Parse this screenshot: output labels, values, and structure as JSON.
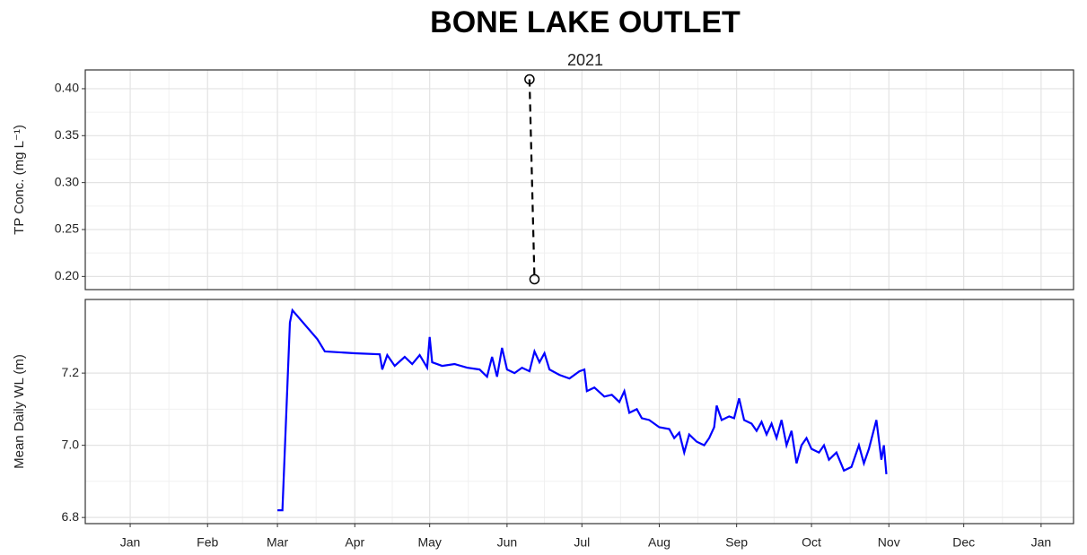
{
  "chart_data": [
    {
      "type": "line",
      "title": "BONE LAKE OUTLET",
      "subtitle": "2021",
      "ylabel": "TP Conc. (mg L⁻¹)",
      "x": [
        160,
        162
      ],
      "values": [
        0.41,
        0.197
      ],
      "color": "#000000",
      "dashed": true,
      "markers": "open-circle",
      "xlim": [
        -18,
        378
      ],
      "ylim": [
        0.186,
        0.42
      ],
      "yticks": [
        {
          "value": 0.2,
          "label": "0.20"
        },
        0.25,
        {
          "value": 0.3,
          "label": "0.30"
        },
        0.35,
        {
          "value": 0.4,
          "label": "0.40"
        }
      ],
      "grid": true
    },
    {
      "type": "line",
      "ylabel": "Mean Daily WL (m)",
      "color": "#0000ff",
      "x": [
        59,
        61,
        64,
        65,
        75,
        78,
        90,
        100,
        101,
        103,
        106,
        110,
        113,
        116,
        119,
        120,
        121,
        125,
        130,
        135,
        140,
        143,
        145,
        147,
        149,
        151,
        154,
        157,
        160,
        162,
        164,
        166,
        168,
        172,
        176,
        180,
        182,
        183,
        186,
        190,
        193,
        196,
        198,
        200,
        203,
        205,
        208,
        212,
        216,
        218,
        220,
        222,
        224,
        227,
        230,
        232,
        234,
        235,
        237,
        240,
        242,
        244,
        246,
        249,
        251,
        253,
        255,
        257,
        259,
        261,
        263,
        265,
        267,
        269,
        271,
        273,
        276,
        278,
        280,
        283,
        286,
        289,
        292,
        294,
        296,
        299,
        301,
        302,
        303
      ],
      "values": [
        6.82,
        6.82,
        7.34,
        7.374,
        7.294,
        7.26,
        7.255,
        7.252,
        7.21,
        7.25,
        7.22,
        7.245,
        7.225,
        7.25,
        7.215,
        7.3,
        7.23,
        7.22,
        7.225,
        7.215,
        7.21,
        7.19,
        7.245,
        7.19,
        7.27,
        7.21,
        7.2,
        7.215,
        7.205,
        7.26,
        7.23,
        7.255,
        7.21,
        7.195,
        7.185,
        7.205,
        7.21,
        7.15,
        7.16,
        7.135,
        7.14,
        7.12,
        7.15,
        7.09,
        7.1,
        7.075,
        7.07,
        7.05,
        7.045,
        7.02,
        7.035,
        6.98,
        7.03,
        7.01,
        7.0,
        7.02,
        7.05,
        7.11,
        7.07,
        7.08,
        7.075,
        7.13,
        7.07,
        7.06,
        7.04,
        7.065,
        7.03,
        7.06,
        7.02,
        7.07,
        7.0,
        7.04,
        6.95,
        7.0,
        7.02,
        6.99,
        6.98,
        7.0,
        6.96,
        6.98,
        6.93,
        6.94,
        7.0,
        6.95,
        6.99,
        7.07,
        6.96,
        7.0,
        6.92
      ],
      "xlim": [
        -18,
        378
      ],
      "ylim": [
        6.783,
        7.404
      ],
      "xticks": [
        {
          "value": 0,
          "label": "Jan"
        },
        {
          "value": 31,
          "label": "Feb"
        },
        {
          "value": 59,
          "label": "Mar"
        },
        {
          "value": 90,
          "label": "Apr"
        },
        {
          "value": 120,
          "label": "May"
        },
        {
          "value": 151,
          "label": "Jun"
        },
        {
          "value": 181,
          "label": "Jul"
        },
        {
          "value": 212,
          "label": "Aug"
        },
        {
          "value": 243,
          "label": "Sep"
        },
        {
          "value": 273,
          "label": "Oct"
        },
        {
          "value": 304,
          "label": "Nov"
        },
        {
          "value": 334,
          "label": "Dec"
        },
        {
          "value": 365,
          "label": "Jan"
        }
      ],
      "yticks": [
        6.8,
        {
          "value": 7,
          "label": "7.0"
        },
        7.2
      ],
      "grid": true
    }
  ]
}
